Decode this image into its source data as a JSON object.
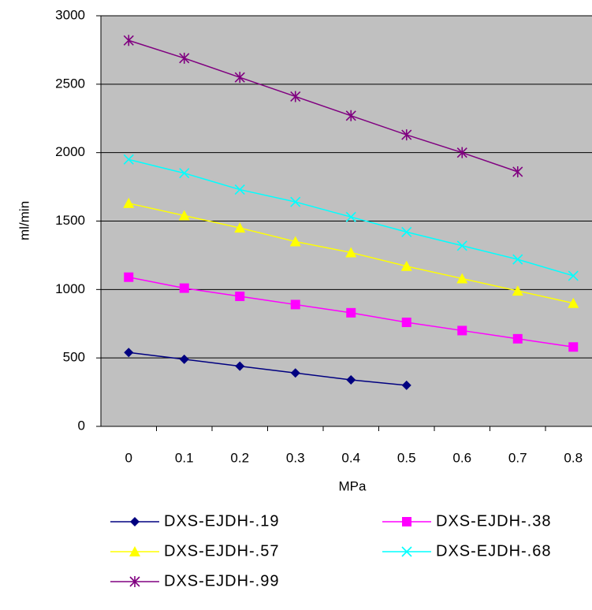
{
  "chart_data": {
    "type": "line",
    "categories": [
      "0",
      "0.1",
      "0.2",
      "0.3",
      "0.4",
      "0.5",
      "0.6",
      "0.7",
      "0.8"
    ],
    "x_label": "MPa",
    "y_label": "ml/min",
    "ylim": [
      0,
      3000
    ],
    "yticks": [
      0,
      500,
      1000,
      1500,
      2000,
      2500,
      3000
    ],
    "grid": true,
    "legend": "bottom",
    "series": [
      {
        "name": "DXS-EJDH-.19",
        "color": "#000080",
        "marker": "diamond",
        "values": [
          540,
          490,
          440,
          390,
          340,
          300,
          null,
          null,
          null
        ]
      },
      {
        "name": "DXS-EJDH-.38",
        "color": "#ff00ff",
        "marker": "square",
        "values": [
          1090,
          1010,
          950,
          890,
          830,
          760,
          700,
          640,
          580
        ]
      },
      {
        "name": "DXS-EJDH-.57",
        "color": "#ffff00",
        "marker": "triangle",
        "values": [
          1630,
          1540,
          1450,
          1350,
          1270,
          1170,
          1080,
          990,
          900
        ]
      },
      {
        "name": "DXS-EJDH-.68",
        "color": "#00ffff",
        "marker": "x",
        "values": [
          1950,
          1850,
          1730,
          1640,
          1530,
          1420,
          1320,
          1220,
          1100
        ]
      },
      {
        "name": "DXS-EJDH-.99",
        "color": "#800080",
        "marker": "star",
        "values": [
          2820,
          2690,
          2550,
          2410,
          2270,
          2130,
          2000,
          1860,
          null
        ]
      }
    ]
  }
}
